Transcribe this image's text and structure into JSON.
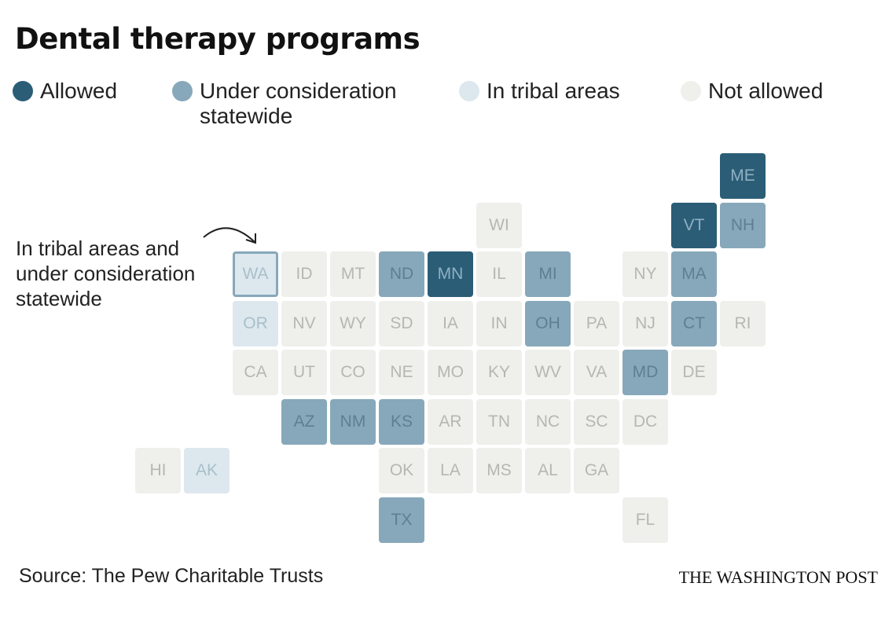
{
  "title": "Dental therapy programs",
  "legend": [
    {
      "key": "allowed",
      "label": "Allowed",
      "color": "#2b5d77"
    },
    {
      "key": "under",
      "label": "Under consideration statewide",
      "color": "#87a8ba"
    },
    {
      "key": "tribal",
      "label": "In tribal areas",
      "color": "#dde8ee"
    },
    {
      "key": "not",
      "label": "Not allowed",
      "color": "#efefec"
    }
  ],
  "annotation": "In tribal areas and under consideration statewide",
  "states": [
    {
      "abbr": "ME",
      "status": "allowed"
    },
    {
      "abbr": "WI",
      "status": "not"
    },
    {
      "abbr": "VT",
      "status": "allowed"
    },
    {
      "abbr": "NH",
      "status": "under"
    },
    {
      "abbr": "WA",
      "status": "both"
    },
    {
      "abbr": "ID",
      "status": "not"
    },
    {
      "abbr": "MT",
      "status": "not"
    },
    {
      "abbr": "ND",
      "status": "under"
    },
    {
      "abbr": "MN",
      "status": "allowed"
    },
    {
      "abbr": "IL",
      "status": "not"
    },
    {
      "abbr": "MI",
      "status": "under"
    },
    {
      "abbr": "NY",
      "status": "not"
    },
    {
      "abbr": "MA",
      "status": "under"
    },
    {
      "abbr": "OR",
      "status": "tribal"
    },
    {
      "abbr": "NV",
      "status": "not"
    },
    {
      "abbr": "WY",
      "status": "not"
    },
    {
      "abbr": "SD",
      "status": "not"
    },
    {
      "abbr": "IA",
      "status": "not"
    },
    {
      "abbr": "IN",
      "status": "not"
    },
    {
      "abbr": "OH",
      "status": "under"
    },
    {
      "abbr": "PA",
      "status": "not"
    },
    {
      "abbr": "NJ",
      "status": "not"
    },
    {
      "abbr": "CT",
      "status": "under"
    },
    {
      "abbr": "RI",
      "status": "not"
    },
    {
      "abbr": "CA",
      "status": "not"
    },
    {
      "abbr": "UT",
      "status": "not"
    },
    {
      "abbr": "CO",
      "status": "not"
    },
    {
      "abbr": "NE",
      "status": "not"
    },
    {
      "abbr": "MO",
      "status": "not"
    },
    {
      "abbr": "KY",
      "status": "not"
    },
    {
      "abbr": "WV",
      "status": "not"
    },
    {
      "abbr": "VA",
      "status": "not"
    },
    {
      "abbr": "MD",
      "status": "under"
    },
    {
      "abbr": "DE",
      "status": "not"
    },
    {
      "abbr": "AZ",
      "status": "under"
    },
    {
      "abbr": "NM",
      "status": "under"
    },
    {
      "abbr": "KS",
      "status": "under"
    },
    {
      "abbr": "AR",
      "status": "not"
    },
    {
      "abbr": "TN",
      "status": "not"
    },
    {
      "abbr": "NC",
      "status": "not"
    },
    {
      "abbr": "SC",
      "status": "not"
    },
    {
      "abbr": "DC",
      "status": "not"
    },
    {
      "abbr": "HI",
      "status": "not"
    },
    {
      "abbr": "AK",
      "status": "tribal"
    },
    {
      "abbr": "OK",
      "status": "not"
    },
    {
      "abbr": "LA",
      "status": "not"
    },
    {
      "abbr": "MS",
      "status": "not"
    },
    {
      "abbr": "AL",
      "status": "not"
    },
    {
      "abbr": "GA",
      "status": "not"
    },
    {
      "abbr": "TX",
      "status": "under"
    },
    {
      "abbr": "FL",
      "status": "not"
    }
  ],
  "source": "Source: The Pew Charitable Trusts",
  "credit": "THE WASHINGTON POST"
}
